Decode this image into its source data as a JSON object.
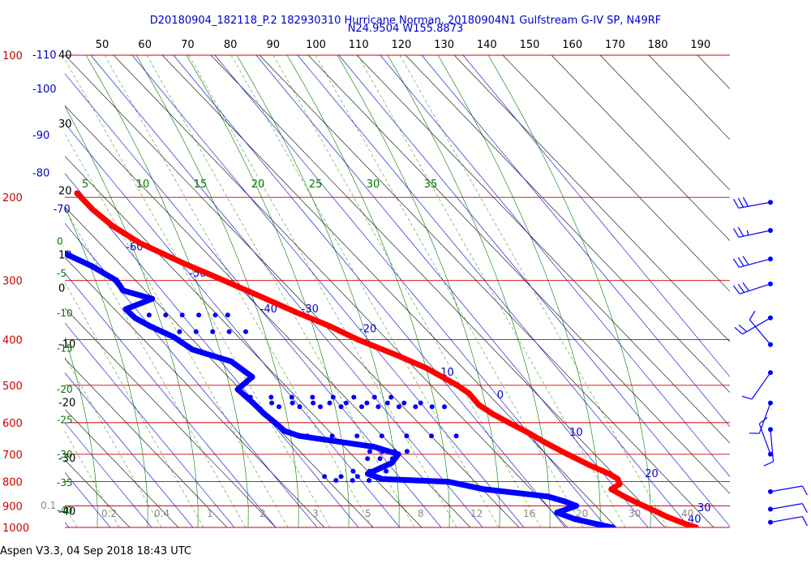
{
  "header": {
    "line1": "D20180904_182118_P.2 182930310 Hurricane Norman, 20180904N1 Gulfstream G-IV SP, N49RF",
    "line2": "N24.9504 W155.8873"
  },
  "footer": {
    "text": "Aspen V3.3, 04 Sep 2018  18:43 UTC"
  },
  "colors": {
    "pressure_lines": "#cc0000",
    "isotherms": "#0000cc",
    "dry_adiabats": "#000000",
    "mixing_ratio": "#007700",
    "moist_adiabats": "#007700",
    "temperature": "#ff0000",
    "dewpoint": "#0000ff",
    "height_labels": "#000000",
    "mixing_labels": "#888888"
  },
  "chart_data": {
    "type": "skew-t",
    "p_ticks": [
      "100",
      "200",
      "300",
      "400",
      "500",
      "600",
      "700",
      "800",
      "900",
      "1000"
    ],
    "p_tick_values": [
      100,
      200,
      300,
      400,
      500,
      600,
      700,
      800,
      900,
      1000
    ],
    "plim": [
      1000,
      100
    ],
    "isotherm_values": [
      -110,
      -100,
      -90,
      -80,
      -70,
      -60,
      -50,
      -40,
      -30,
      -20,
      -10,
      0,
      10,
      20,
      30,
      40
    ],
    "isotherm_labels": [
      {
        "label": "-110",
        "value": -110,
        "p": 100
      },
      {
        "label": "-100",
        "value": -100,
        "p": 118
      },
      {
        "label": "-90",
        "value": -90,
        "p": 148
      },
      {
        "label": "-80",
        "value": -80,
        "p": 178
      },
      {
        "label": "-70",
        "value": -70,
        "p": 212
      },
      {
        "label": "-60",
        "value": -60,
        "p": 255
      },
      {
        "label": "-50",
        "value": -50,
        "p": 290
      },
      {
        "label": "-40",
        "value": -40,
        "p": 345
      },
      {
        "label": "-30",
        "value": -30,
        "p": 345
      },
      {
        "label": "-20",
        "value": -20,
        "p": 380
      },
      {
        "label": "-10",
        "value": -10,
        "p": 470
      },
      {
        "label": "0",
        "value": 0,
        "p": 525
      },
      {
        "label": "10",
        "value": 10,
        "p": 630
      },
      {
        "label": "20",
        "value": 20,
        "p": 770
      },
      {
        "label": "30",
        "value": 30,
        "p": 910
      },
      {
        "label": "40",
        "value": 40,
        "p": 1000
      }
    ],
    "top_ticks": [
      "50",
      "60",
      "70",
      "80",
      "90",
      "100",
      "110",
      "120",
      "130",
      "140",
      "150",
      "160",
      "170",
      "180",
      "190"
    ],
    "top_tick_values": [
      50,
      60,
      70,
      80,
      90,
      100,
      110,
      120,
      130,
      140,
      150,
      160,
      170,
      180,
      190
    ],
    "theta_labels": [
      {
        "label": "5",
        "value": 5
      },
      {
        "label": "10",
        "value": 10
      },
      {
        "label": "15",
        "value": 15
      },
      {
        "label": "20",
        "value": 20
      },
      {
        "label": "25",
        "value": 25
      },
      {
        "label": "30",
        "value": 30
      },
      {
        "label": "35",
        "value": 35
      }
    ],
    "height_labels": [
      {
        "label": "40",
        "p": 100
      },
      {
        "label": "30",
        "p": 140
      },
      {
        "label": "20",
        "p": 194
      },
      {
        "label": "10",
        "p": 265
      },
      {
        "label": "0",
        "p": 312
      },
      {
        "label": "-10",
        "p": 410
      },
      {
        "label": "-20",
        "p": 545
      },
      {
        "label": "-30",
        "p": 715
      },
      {
        "label": "-40",
        "p": 925
      }
    ],
    "moist_labels": [
      {
        "label": "0",
        "p": 248
      },
      {
        "label": "-5",
        "p": 290
      },
      {
        "label": "-10",
        "p": 352
      },
      {
        "label": "-15",
        "p": 418
      },
      {
        "label": "-20",
        "p": 510
      },
      {
        "label": "-25",
        "p": 592
      },
      {
        "label": "-30",
        "p": 700
      },
      {
        "label": "-35",
        "p": 805
      },
      {
        "label": "-40",
        "p": 920
      }
    ],
    "mixing_ratio_labels": [
      {
        "label": "0.1",
        "value": 0.1
      },
      {
        "label": "0.2",
        "value": 0.2
      },
      {
        "label": "0.4",
        "value": 0.4
      },
      {
        "label": "1",
        "value": 1
      },
      {
        "label": "2",
        "value": 2
      },
      {
        "label": "3",
        "value": 3
      },
      {
        "label": "5",
        "value": 5
      },
      {
        "label": "8",
        "value": 8
      },
      {
        "label": "12",
        "value": 12
      },
      {
        "label": "16",
        "value": 16
      },
      {
        "label": "20",
        "value": 20
      },
      {
        "label": "30",
        "value": 30
      },
      {
        "label": "40",
        "value": 40
      }
    ],
    "temperature": {
      "p": [
        196,
        212,
        230,
        250,
        275,
        300,
        325,
        350,
        375,
        400,
        430,
        460,
        500,
        520,
        550,
        575,
        600,
        630,
        660,
        700,
        740,
        770,
        790,
        810,
        830,
        860,
        890,
        920,
        950,
        980,
        1000
      ],
      "t": [
        -61,
        -60.5,
        -59,
        -55.8,
        -49.5,
        -43,
        -37.2,
        -32,
        -26.5,
        -22.5,
        -16.5,
        -11.6,
        -7.6,
        -6.4,
        -6.3,
        -4.8,
        -2.6,
        0,
        2.1,
        5.2,
        8.5,
        11.4,
        12.4,
        11.8,
        8.8,
        10.5,
        12.5,
        14.8,
        16.8,
        19.5,
        21.6
      ]
    },
    "dewpoint": {
      "p": [
        232,
        255,
        280,
        300,
        315,
        328,
        345,
        360,
        375,
        395,
        420,
        445,
        480,
        510,
        545,
        575,
        605,
        625,
        640,
        675,
        700,
        730,
        770,
        790,
        800,
        830,
        860,
        880,
        900,
        930,
        960,
        990,
        1000
      ],
      "t": [
        -83,
        -78,
        -72,
        -69,
        -69.4,
        -64,
        -72.5,
        -72,
        -70,
        -66.5,
        -64.5,
        -57.5,
        -55.5,
        -61.5,
        -60.5,
        -60,
        -59,
        -58.5,
        -56,
        -40,
        -35.7,
        -39,
        -47,
        -44.5,
        -29.2,
        -22,
        -8,
        -5,
        -3,
        -9,
        -6,
        -0.5,
        1.5
      ]
    },
    "dewpoint_scatter": [
      {
        "p": 355,
        "t": [
          -68,
          -64,
          -60,
          -56,
          -52,
          -49
        ]
      },
      {
        "p": 385,
        "t": [
          -68,
          -64,
          -60,
          -56,
          -52,
          -48
        ]
      },
      {
        "p": 530,
        "t": [
          -60,
          -55,
          -50,
          -45,
          -40,
          -35,
          -30,
          -26
        ]
      },
      {
        "p": 545,
        "t": [
          -56,
          -51,
          -46,
          -42,
          -38,
          -33,
          -28,
          -24,
          -20
        ]
      },
      {
        "p": 555,
        "t": [
          -55,
          -50,
          -45,
          -40,
          -35,
          -31,
          -26,
          -22,
          -18,
          -15
        ]
      },
      {
        "p": 640,
        "t": [
          -54,
          -48,
          -42,
          -36,
          -30,
          -24,
          -18
        ]
      },
      {
        "p": 690,
        "t": [
          -42,
          -39,
          -36,
          -33
        ]
      },
      {
        "p": 715,
        "t": [
          -44,
          -41,
          -38
        ]
      },
      {
        "p": 760,
        "t": [
          -50,
          -46,
          -42
        ]
      },
      {
        "p": 780,
        "t": [
          -58,
          -54,
          -50,
          -46
        ]
      },
      {
        "p": 795,
        "t": [
          -56,
          -52,
          -48
        ]
      }
    ],
    "wind_barbs": [
      {
        "p": 205,
        "dir": 260,
        "spd": 30
      },
      {
        "p": 235,
        "dir": 258,
        "spd": 28
      },
      {
        "p": 270,
        "dir": 255,
        "spd": 30
      },
      {
        "p": 305,
        "dir": 252,
        "spd": 33
      },
      {
        "p": 360,
        "dir": 240,
        "spd": 20
      },
      {
        "p": 410,
        "dir": 320,
        "spd": 10
      },
      {
        "p": 470,
        "dir": 215,
        "spd": 10
      },
      {
        "p": 545,
        "dir": 200,
        "spd": 10
      },
      {
        "p": 620,
        "dir": 175,
        "spd": 10
      },
      {
        "p": 700,
        "dir": 340,
        "spd": 10
      },
      {
        "p": 840,
        "dir": 80,
        "spd": 10
      },
      {
        "p": 915,
        "dir": 80,
        "spd": 10
      },
      {
        "p": 975,
        "dir": 80,
        "spd": 10
      }
    ]
  }
}
